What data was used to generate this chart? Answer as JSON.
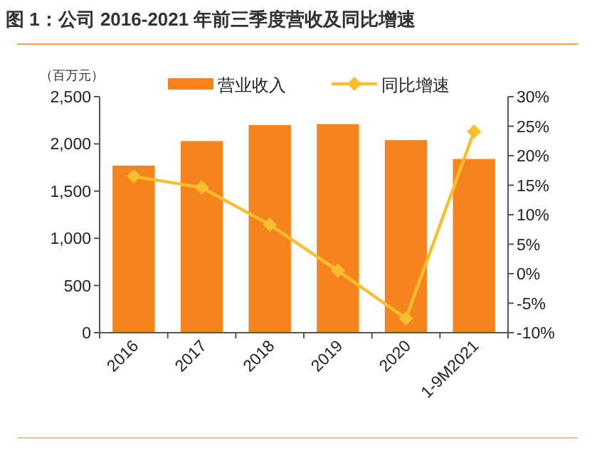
{
  "chart_data": {
    "type": "bar",
    "title": "图 1：公司 2016-2021 年前三季度营收及同比增速",
    "ylabel": "（百万元）",
    "categories": [
      "2016",
      "2017",
      "2018",
      "2019",
      "2020",
      "1-9M2021"
    ],
    "series": [
      {
        "name": "营业收入",
        "color": "#f5841f",
        "values": [
          1770,
          2030,
          2200,
          2210,
          2040,
          1840
        ]
      },
      {
        "name": "同比增速",
        "type": "line",
        "axis": "y2",
        "color": "#fbbf2d",
        "marker": "diamond",
        "values": [
          16.5,
          14.6,
          8.3,
          0.5,
          -7.6,
          24.1
        ]
      }
    ],
    "ylim": [
      0,
      2500
    ],
    "yticks": [
      0,
      500,
      {
        "value": 1000,
        "label": "1,000"
      },
      {
        "value": 1500,
        "label": "1,500"
      },
      {
        "value": 2000,
        "label": "2,000"
      },
      {
        "value": 2500,
        "label": "2,500"
      }
    ],
    "y2lim": [
      -10,
      30
    ],
    "y2ticks": [
      {
        "value": -10,
        "label": "-10%"
      },
      {
        "value": -5,
        "label": "-5%"
      },
      {
        "value": 0,
        "label": "0%"
      },
      {
        "value": 5,
        "label": "5%"
      },
      {
        "value": 10,
        "label": "10%"
      },
      {
        "value": 15,
        "label": "15%"
      },
      {
        "value": 20,
        "label": "20%"
      },
      {
        "value": 25,
        "label": "25%"
      },
      {
        "value": 30,
        "label": "30%"
      }
    ],
    "legend": "top",
    "grid": false
  }
}
